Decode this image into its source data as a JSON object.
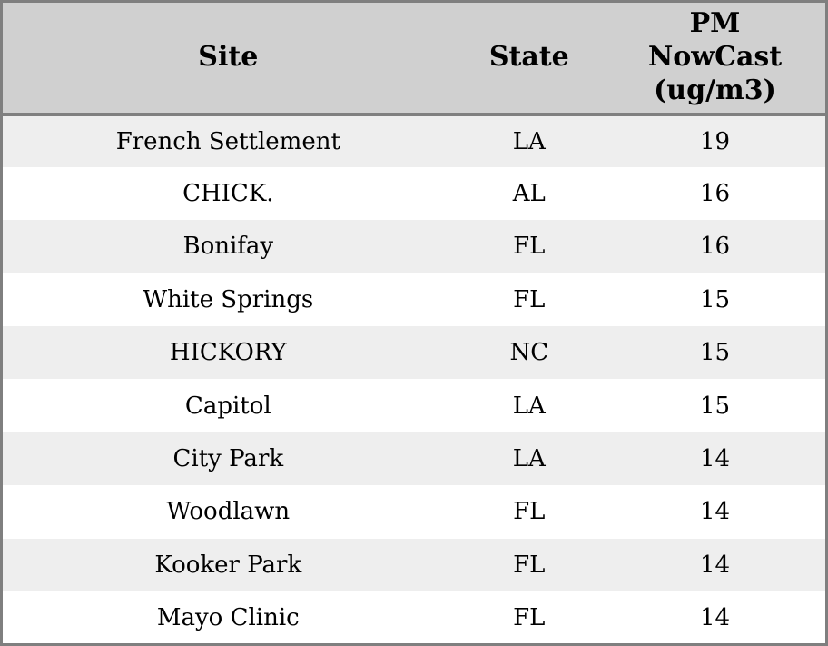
{
  "colors": {
    "header_bg": "#d0d0d0",
    "row_stripe": "#eeeeee",
    "row_white": "#ffffff",
    "border": "#7f7f7f",
    "text": "#000000"
  },
  "chart_data": {
    "type": "table",
    "columns": [
      "Site",
      "State",
      "PM NowCast (ug/m3)"
    ],
    "rows": [
      [
        "French Settlement",
        "LA",
        "19"
      ],
      [
        "CHICK.",
        "AL",
        "16"
      ],
      [
        "Bonifay",
        "FL",
        "16"
      ],
      [
        "White Springs",
        "FL",
        "15"
      ],
      [
        "HICKORY",
        "NC",
        "15"
      ],
      [
        "Capitol",
        "LA",
        "15"
      ],
      [
        "City Park",
        "LA",
        "14"
      ],
      [
        "Woodlawn",
        "FL",
        "14"
      ],
      [
        "Kooker Park",
        "FL",
        "14"
      ],
      [
        "Mayo Clinic",
        "FL",
        "14"
      ]
    ],
    "layout": {
      "grid": false,
      "striped_rows": true,
      "column_alignment": [
        "center",
        "center",
        "center"
      ]
    }
  }
}
